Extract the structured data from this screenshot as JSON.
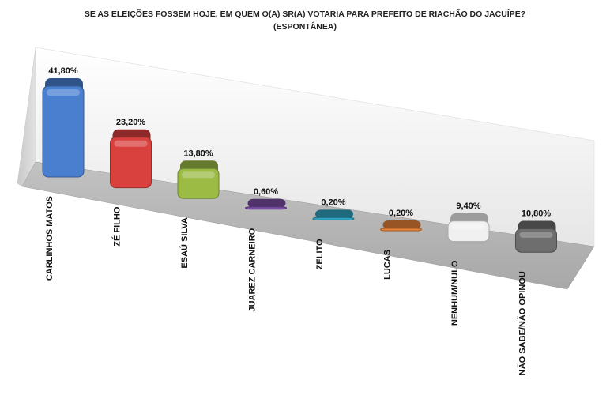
{
  "chart_data": {
    "type": "bar",
    "title": "SE AS ELEIÇÕES FOSSEM HOJE, EM QUEM O(A) SR(A) VOTARIA PARA PREFEITO DE RIACHÃO DO JACUÍPE?",
    "subtitle": "(ESPONTÂNEA)",
    "categories": [
      "CARLINHOS MATOS",
      "ZÉ FILHO",
      "ESAÚ SILVA",
      "JUAREZ CARNEIRO",
      "ZELITO",
      "LUCAS",
      "NENHUM/NULO",
      "NÃO SABE/NÃO OPINOU"
    ],
    "values": [
      41.8,
      23.2,
      13.8,
      0.6,
      0.2,
      0.2,
      9.4,
      10.8
    ],
    "data_labels": [
      "41,80%",
      "23,20%",
      "13,80%",
      "0,60%",
      "0,20%",
      "0,20%",
      "9,40%",
      "10,80%"
    ],
    "colors": [
      "#4a7fcf",
      "#d9413f",
      "#9bbb45",
      "#7a4fa3",
      "#2fa3bf",
      "#e8833a",
      "#f0f0f0",
      "#6e6e6e"
    ],
    "ylim": [
      0,
      45
    ],
    "grid": false,
    "legend": "none",
    "style": "3d-perspective-rounded-columns"
  }
}
